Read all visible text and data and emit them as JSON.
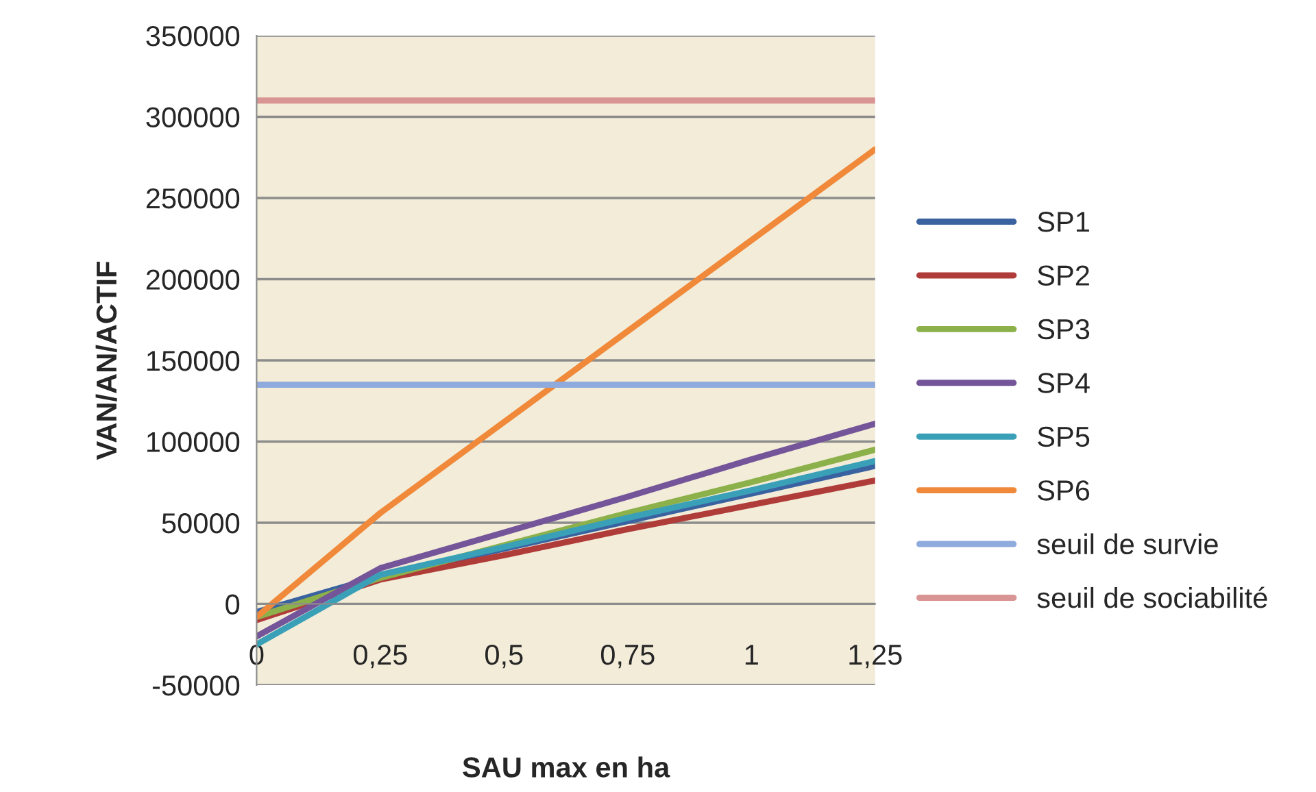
{
  "chart_data": {
    "type": "line",
    "xlabel": "SAU max en ha",
    "ylabel": "VAN/AN/ACTIF",
    "categories": [
      "0",
      "0,25",
      "0,5",
      "0,75",
      "1",
      "1,25"
    ],
    "series": [
      {
        "name": "SP1",
        "color": "#3a62a0",
        "values": [
          -5000,
          17000,
          34000,
          51000,
          68000,
          85000
        ]
      },
      {
        "name": "SP2",
        "color": "#b03c3a",
        "values": [
          -10000,
          15000,
          30000,
          46000,
          61000,
          76000
        ]
      },
      {
        "name": "SP3",
        "color": "#8cb04a",
        "values": [
          -8000,
          16000,
          36000,
          56000,
          75000,
          95000
        ]
      },
      {
        "name": "SP4",
        "color": "#74559a",
        "values": [
          -20000,
          22000,
          44000,
          66000,
          89000,
          111000
        ]
      },
      {
        "name": "SP5",
        "color": "#3aa0b8",
        "values": [
          -25000,
          18000,
          35000,
          53000,
          70000,
          88000
        ]
      },
      {
        "name": "SP6",
        "color": "#f0893a",
        "values": [
          -8000,
          56000,
          112000,
          168000,
          224000,
          280000
        ]
      },
      {
        "name": "seuil de survie",
        "color": "#8faadc",
        "values": [
          135000,
          135000,
          135000,
          135000,
          135000,
          135000
        ]
      },
      {
        "name": "seuil de sociabilité",
        "color": "#d99594",
        "values": [
          310000,
          310000,
          310000,
          310000,
          310000,
          310000
        ]
      }
    ],
    "ylim": [
      -50000,
      350000
    ],
    "yticks": [
      -50000,
      0,
      50000,
      100000,
      150000,
      200000,
      250000,
      300000,
      350000
    ],
    "grid": "y",
    "legend": "right",
    "marker": "none",
    "line_style": "solid"
  }
}
